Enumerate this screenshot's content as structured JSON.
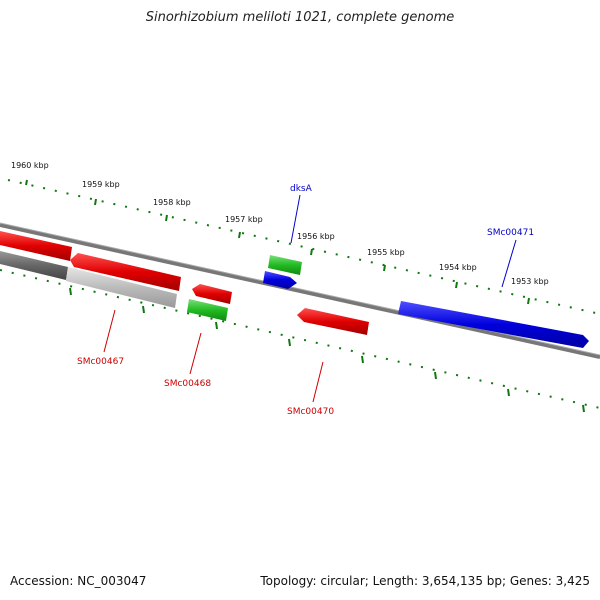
{
  "title": "Sinorhizobium meliloti 1021, complete genome",
  "footer": {
    "accession": "Accession: NC_003047",
    "summary": "Topology: circular; Length: 3,654,135 bp; Genes: 3,425"
  },
  "scale_labels": [
    "1960 kbp",
    "1959 kbp",
    "1958 kbp",
    "1957 kbp",
    "1956 kbp",
    "1955 kbp",
    "1954 kbp",
    "1953 kbp"
  ],
  "gene_labels": [
    {
      "text": "dksA",
      "color": "#0000cc"
    },
    {
      "text": "SMc00471",
      "color": "#0000cc"
    },
    {
      "text": "SMc00467",
      "color": "#cc0000"
    },
    {
      "text": "SMc00468",
      "color": "#cc0000"
    },
    {
      "text": "SMc00470",
      "color": "#cc0000"
    }
  ],
  "colors": {
    "red_feature": "#e00000",
    "green_feature": "#22bb22",
    "blue_feature": "#0000dd",
    "backbone": "#777777",
    "tick": "#117711",
    "gray_feature": "#666666",
    "light_gray_feature": "#bbbbbb"
  }
}
